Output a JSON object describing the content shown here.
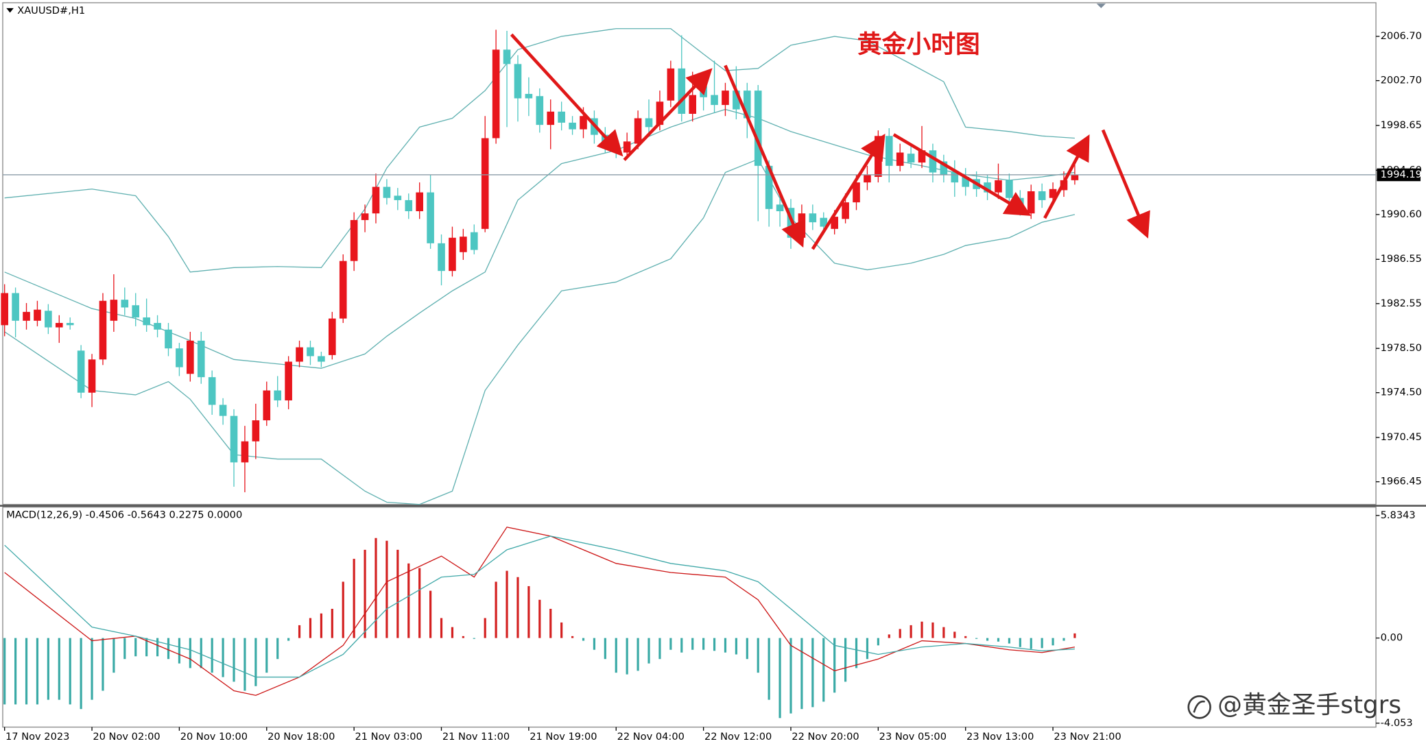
{
  "chart_data": [
    {
      "type": "candlestick",
      "symbol_label": "XAUUSD#,H1",
      "annotation": "黄金小时图",
      "watermark": "@黄金圣手stgrs",
      "up_color": "#e8161d",
      "down_color": "#4dc6c2",
      "xlim": [
        -0.17,
        125.58
      ],
      "ylim": [
        1964.4,
        2009.74
      ],
      "yticks": [
        {
          "value": 2006.7,
          "label": "2006.70"
        },
        {
          "value": 2002.7,
          "label": "2002.70"
        },
        1998.65,
        {
          "value": 1994.6,
          "label": "1994.60"
        },
        {
          "value": 1990.6,
          "label": "1990.60"
        },
        1986.55,
        1982.55,
        {
          "value": 1978.5,
          "label": "1978.50"
        },
        {
          "value": 1974.5,
          "label": "1974.50"
        },
        1970.45,
        1966.45
      ],
      "last_price": 1994.19,
      "candles": {
        "open": [
          1980.6,
          1983.5,
          1981.0,
          1981.0,
          1981.9,
          1980.4,
          1980.8,
          1978.3,
          1974.5,
          1977.5,
          1981.0,
          1982.9,
          1982.4,
          1981.3,
          1980.8,
          1980.2,
          1978.5,
          1976.2,
          1979.2,
          1975.9,
          1973.4,
          1972.4,
          1968.2,
          1970.1,
          1972.0,
          1974.7,
          1973.8,
          1977.3,
          1978.6,
          1977.8,
          1977.9,
          1981.2,
          1986.4,
          1990.1,
          1990.7,
          1993.1,
          1992.3,
          1991.9,
          1990.9,
          1992.6,
          1988.0,
          1985.5,
          1987.2,
          1989.0,
          1989.3,
          1997.5,
          2005.5,
          2004.2,
          2001.5,
          2001.3,
          1998.7,
          1999.9,
          1998.9,
          1998.3,
          1999.3,
          1997.8,
          1997.0,
          1996.2,
          1997.0,
          1999.3,
          1998.7,
          2000.9,
          2003.8,
          1999.7,
          2002.2,
          2001.4,
          2000.5,
          2001.8,
          2001.8,
          2001.8,
          1995.0,
          1991.5,
          1991.2,
          1988.5,
          1990.7,
          1990.3,
          1989.3,
          1990.2,
          1991.7,
          1993.5,
          1994.0,
          1997.7,
          1995.0,
          1996.1,
          1995.3,
          1996.4,
          1995.4,
          1994.5,
          1994.0,
          1993.8,
          1993.5,
          1992.6,
          1993.7,
          1992.1,
          1990.7,
          1992.7,
          1992.1,
          1992.8,
          1993.7
        ],
        "high": [
          1984.3,
          1984.0,
          1982.6,
          1982.8,
          1982.5,
          1981.5,
          1981.3,
          1978.8,
          1978.0,
          1983.5,
          1985.2,
          1984.0,
          1983.5,
          1983.0,
          1981.5,
          1980.8,
          1979.0,
          1980.0,
          1980.0,
          1976.5,
          1974.0,
          1973.0,
          1971.5,
          1973.5,
          1975.5,
          1976.0,
          1977.8,
          1979.2,
          1979.2,
          1978.2,
          1981.8,
          1987.0,
          1990.8,
          1991.5,
          1994.3,
          1993.8,
          1993.0,
          1992.5,
          1993.5,
          1994.2,
          1988.8,
          1989.5,
          1989.3,
          1989.7,
          1999.5,
          2007.3,
          2007.2,
          2005.0,
          2003.0,
          2002.0,
          2001.0,
          2000.8,
          1999.5,
          2000.3,
          2000.0,
          1998.5,
          1997.5,
          1998.0,
          2000.0,
          2001.0,
          2001.8,
          2004.5,
          2006.8,
          2003.5,
          2003.5,
          2004.5,
          2002.5,
          2004.0,
          2002.5,
          2002.3,
          1995.5,
          1992.5,
          1992.0,
          1991.5,
          1991.5,
          1990.8,
          1991.0,
          1992.5,
          1994.2,
          1995.0,
          1998.2,
          1998.4,
          1997.0,
          1996.8,
          1998.6,
          1997.0,
          1996.0,
          1995.5,
          1994.8,
          1994.5,
          1994.2,
          1995.2,
          1994.3,
          1992.8,
          1993.3,
          1993.4,
          1993.5,
          1994.5,
          1995.2
        ],
        "low": [
          1979.6,
          1979.5,
          1980.2,
          1980.5,
          1979.8,
          1979.0,
          1980.2,
          1974.0,
          1973.2,
          1977.0,
          1980.0,
          1981.5,
          1980.5,
          1980.0,
          1979.5,
          1977.8,
          1976.0,
          1975.5,
          1975.3,
          1972.5,
          1971.6,
          1966.0,
          1965.5,
          1968.5,
          1971.5,
          1973.2,
          1973.0,
          1976.8,
          1977.0,
          1976.8,
          1977.5,
          1980.8,
          1985.5,
          1989.0,
          1989.8,
          1991.5,
          1991.0,
          1990.2,
          1990.2,
          1987.5,
          1984.2,
          1985.0,
          1986.5,
          1987.0,
          1989.0,
          1997.0,
          1998.5,
          1999.0,
          1999.5,
          1998.0,
          1996.5,
          1998.2,
          1997.8,
          1997.5,
          1997.0,
          1996.2,
          1995.7,
          1995.8,
          1996.5,
          1998.0,
          1998.2,
          2000.3,
          1999.0,
          1999.0,
          2000.0,
          1999.8,
          1999.5,
          1999.2,
          1997.5,
          1990.0,
          1989.5,
          1989.5,
          1987.5,
          1987.8,
          1989.2,
          1988.8,
          1988.8,
          1989.8,
          1991.0,
          1992.8,
          1993.5,
          1993.5,
          1994.5,
          1994.8,
          1994.8,
          1993.5,
          1993.5,
          1992.2,
          1992.3,
          1992.2,
          1991.9,
          1992.0,
          1991.5,
          1990.5,
          1990.2,
          1991.2,
          1991.5,
          1992.2,
          1993.3
        ],
        "close": [
          1983.5,
          1981.0,
          1981.8,
          1982.0,
          1980.4,
          1980.8,
          1980.6,
          1974.5,
          1977.5,
          1982.8,
          1982.9,
          1982.2,
          1981.3,
          1980.6,
          1980.2,
          1978.5,
          1976.8,
          1979.2,
          1975.9,
          1973.4,
          1972.4,
          1968.2,
          1970.1,
          1972.0,
          1974.7,
          1973.8,
          1977.3,
          1978.6,
          1977.8,
          1977.3,
          1981.2,
          1986.4,
          1990.1,
          1990.7,
          1993.1,
          1992.1,
          1991.9,
          1990.9,
          1992.6,
          1988.0,
          1985.5,
          1988.5,
          1988.6,
          1987.4,
          1997.5,
          2005.5,
          2004.2,
          2001.1,
          2001.1,
          1998.7,
          1999.9,
          1998.9,
          1998.3,
          1999.5,
          1997.8,
          1997.0,
          1996.2,
          1997.2,
          1999.3,
          1998.5,
          2000.8,
          2003.8,
          1999.7,
          2001.4,
          2001.2,
          2000.5,
          2001.8,
          2000.1,
          1999.3,
          1995.0,
          1991.1,
          1990.9,
          1988.5,
          1990.7,
          1989.9,
          1989.5,
          1990.4,
          1991.7,
          1993.5,
          1994.2,
          1997.7,
          1995.0,
          1996.2,
          1995.3,
          1996.4,
          1994.4,
          1994.2,
          1993.5,
          1993.1,
          1992.9,
          1992.6,
          1993.7,
          1992.1,
          1991.1,
          1992.7,
          1991.9,
          1992.9,
          1993.7,
          1994.19
        ]
      },
      "bands": [
        {
          "color": "#5fb0b0",
          "x": [
            0,
            8,
            12,
            15,
            17,
            21,
            25,
            29,
            33,
            35,
            38,
            41,
            44,
            47,
            51,
            56,
            61,
            64,
            66,
            69,
            72,
            76,
            79,
            83,
            86,
            88,
            92,
            95,
            98
          ],
          "values": [
            1992.1,
            1992.9,
            1992.3,
            1988.6,
            1985.4,
            1985.8,
            1985.9,
            1985.8,
            1991.1,
            1994.8,
            1998.5,
            1999.3,
            2001.8,
            2005.5,
            2006.7,
            2007.4,
            2007.4,
            2005.1,
            2003.6,
            2003.8,
            2005.9,
            2006.7,
            2006.3,
            2004.2,
            2002.6,
            1998.5,
            1998.1,
            1997.7,
            1997.5
          ]
        },
        {
          "color": "#5fb0b0",
          "x": [
            0,
            8,
            12,
            15,
            17,
            21,
            25,
            29,
            33,
            35,
            38,
            41,
            44,
            47,
            51,
            56,
            61,
            64,
            66,
            69,
            72,
            76,
            79,
            83,
            86,
            88,
            92,
            95,
            98
          ],
          "values": [
            1985.4,
            1982.1,
            1981.2,
            1980.0,
            1979.2,
            1977.5,
            1977.1,
            1976.7,
            1978.0,
            1979.6,
            1981.7,
            1983.7,
            1985.4,
            1991.9,
            1995.2,
            1996.4,
            1998.5,
            1999.5,
            2000.1,
            1999.3,
            1998.1,
            1996.9,
            1996.0,
            1995.2,
            1994.6,
            1994.2,
            1993.7,
            1994.0,
            1994.4
          ]
        },
        {
          "color": "#5fb0b0",
          "x": [
            0,
            8,
            12,
            15,
            17,
            21,
            25,
            29,
            33,
            35,
            38,
            41,
            44,
            47,
            51,
            56,
            61,
            64,
            66,
            69,
            72,
            76,
            79,
            83,
            86,
            88,
            92,
            95,
            98
          ],
          "values": [
            1980.0,
            1974.7,
            1974.3,
            1975.5,
            1973.9,
            1968.9,
            1968.5,
            1968.5,
            1965.6,
            1964.6,
            1964.4,
            1965.6,
            1974.7,
            1978.8,
            1983.7,
            1984.5,
            1986.6,
            1990.3,
            1994.4,
            1995.6,
            1990.3,
            1986.2,
            1985.6,
            1986.2,
            1987.0,
            1987.8,
            1988.5,
            1989.9,
            1990.6
          ]
        }
      ]
    },
    {
      "type": "macd",
      "label": "MACD(12,26,9) -0.4506 -0.5643 0.2275 0.0000",
      "up_color": "#d42020",
      "down_color": "#3aaaa6",
      "xlim": [
        -0.17,
        125.58
      ],
      "ylim": [
        -4.24,
        6.23
      ],
      "yticks": [
        5.8343,
        {
          "value": 0,
          "label": "0.00"
        },
        -4.053
      ],
      "xticks": [
        {
          "value": 0,
          "label": "17 Nov 2023"
        },
        {
          "value": 8,
          "label": "20 Nov 02:00"
        },
        {
          "value": 16,
          "label": "20 Nov 10:00"
        },
        {
          "value": 24,
          "label": "20 Nov 18:00"
        },
        {
          "value": 32,
          "label": "21 Nov 03:00"
        },
        {
          "value": 40,
          "label": "21 Nov 11:00"
        },
        {
          "value": 48,
          "label": "21 Nov 19:00"
        },
        {
          "value": 56,
          "label": "22 Nov 04:00"
        },
        {
          "value": 64,
          "label": "22 Nov 12:00"
        },
        {
          "value": 72,
          "label": "22 Nov 20:00"
        },
        {
          "value": 80,
          "label": "23 Nov 05:00"
        },
        {
          "value": 88,
          "label": "23 Nov 13:00"
        },
        {
          "value": 96,
          "label": "23 Nov 21:00"
        }
      ],
      "histogram": [
        -3.16,
        -3.16,
        -3.16,
        -3.16,
        -2.94,
        -2.94,
        -3.16,
        -3.38,
        -2.94,
        -2.51,
        -1.65,
        -1.0,
        -0.87,
        -0.87,
        -0.87,
        -1.0,
        -1.21,
        -1.43,
        -1.43,
        -1.65,
        -1.86,
        -2.08,
        -2.51,
        -2.29,
        -1.65,
        -1.0,
        -0.13,
        0.61,
        0.95,
        1.17,
        1.39,
        2.68,
        3.77,
        4.2,
        4.76,
        4.63,
        4.2,
        3.55,
        3.33,
        2.25,
        0.95,
        0.52,
        0.09,
        -0.04,
        0.95,
        2.68,
        3.2,
        2.9,
        2.47,
        1.82,
        1.39,
        0.74,
        0.09,
        -0.13,
        -0.56,
        -1.0,
        -1.65,
        -1.73,
        -1.56,
        -1.21,
        -1.0,
        -0.56,
        -0.69,
        -0.56,
        -0.56,
        -0.61,
        -0.69,
        -0.78,
        -1.0,
        -1.65,
        -2.94,
        -3.81,
        -3.59,
        -3.38,
        -3.29,
        -3.03,
        -2.6,
        -2.08,
        -1.43,
        -1.0,
        -0.35,
        0.17,
        0.43,
        0.61,
        0.78,
        0.74,
        0.52,
        0.3,
        0.09,
        -0.04,
        -0.13,
        -0.17,
        -0.26,
        -0.43,
        -0.52,
        -0.48,
        -0.35,
        -0.13,
        0.22
      ],
      "lines": [
        {
          "color": "#cc1414",
          "x": [
            0,
            8,
            12,
            17,
            21,
            23,
            27,
            31,
            35,
            40,
            43,
            46,
            50,
            56,
            61,
            66,
            69,
            72,
            76,
            80,
            84,
            88,
            92,
            95,
            98
          ],
          "values": [
            3.12,
            -0.13,
            0.09,
            -1.0,
            -2.51,
            -2.73,
            -1.86,
            -0.35,
            2.68,
            3.9,
            2.9,
            5.28,
            4.85,
            3.55,
            3.12,
            2.9,
            1.82,
            -0.35,
            -1.56,
            -1.0,
            -0.13,
            -0.26,
            -0.56,
            -0.69,
            -0.43
          ]
        },
        {
          "color": "#3fa8a8",
          "x": [
            0,
            8,
            12,
            17,
            21,
            23,
            27,
            31,
            35,
            40,
            43,
            46,
            50,
            56,
            61,
            66,
            69,
            72,
            76,
            80,
            84,
            88,
            92,
            95,
            98
          ],
          "values": [
            4.42,
            0.52,
            0.09,
            -0.56,
            -1.43,
            -1.86,
            -1.86,
            -0.78,
            1.39,
            2.9,
            3.03,
            4.2,
            4.85,
            4.2,
            3.55,
            3.2,
            2.68,
            1.39,
            -0.35,
            -0.78,
            -0.43,
            -0.26,
            -0.43,
            -0.61,
            -0.52
          ]
        }
      ]
    }
  ]
}
